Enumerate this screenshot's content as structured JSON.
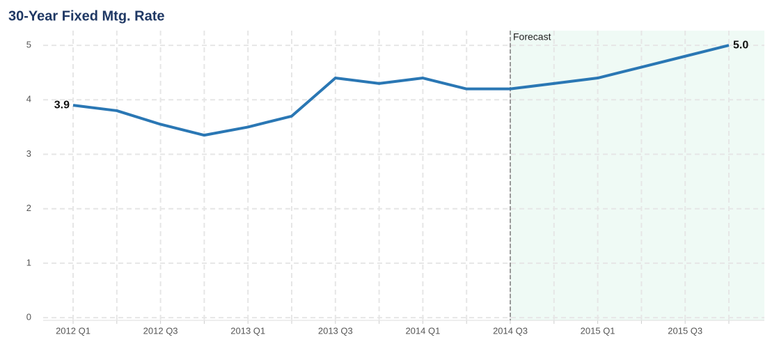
{
  "chart_data": {
    "type": "line",
    "title": "30-Year Fixed Mtg. Rate",
    "categories": [
      "2012 Q1",
      null,
      "2012 Q3",
      null,
      "2013 Q1",
      null,
      "2013 Q3",
      null,
      "2014 Q1",
      null,
      "2014 Q3",
      null,
      "2015 Q1",
      null,
      "2015 Q3",
      null
    ],
    "series": [
      {
        "color": "#2a77b4",
        "values": [
          3.9,
          3.8,
          3.55,
          3.35,
          3.5,
          3.7,
          4.4,
          4.3,
          4.4,
          4.2,
          4.2,
          4.3,
          4.4,
          4.6,
          4.8,
          5.0
        ],
        "value_labels": [
          "3.9",
          null,
          null,
          null,
          null,
          null,
          null,
          null,
          null,
          null,
          null,
          null,
          null,
          null,
          null,
          "5.0"
        ]
      }
    ],
    "ylim": [
      -0.05,
      5.27
    ],
    "yticks": [
      0,
      1,
      2,
      3,
      4,
      5
    ],
    "grid": true,
    "forecast": {
      "label": "Forecast",
      "start": 10,
      "color": "#effaf5"
    }
  }
}
